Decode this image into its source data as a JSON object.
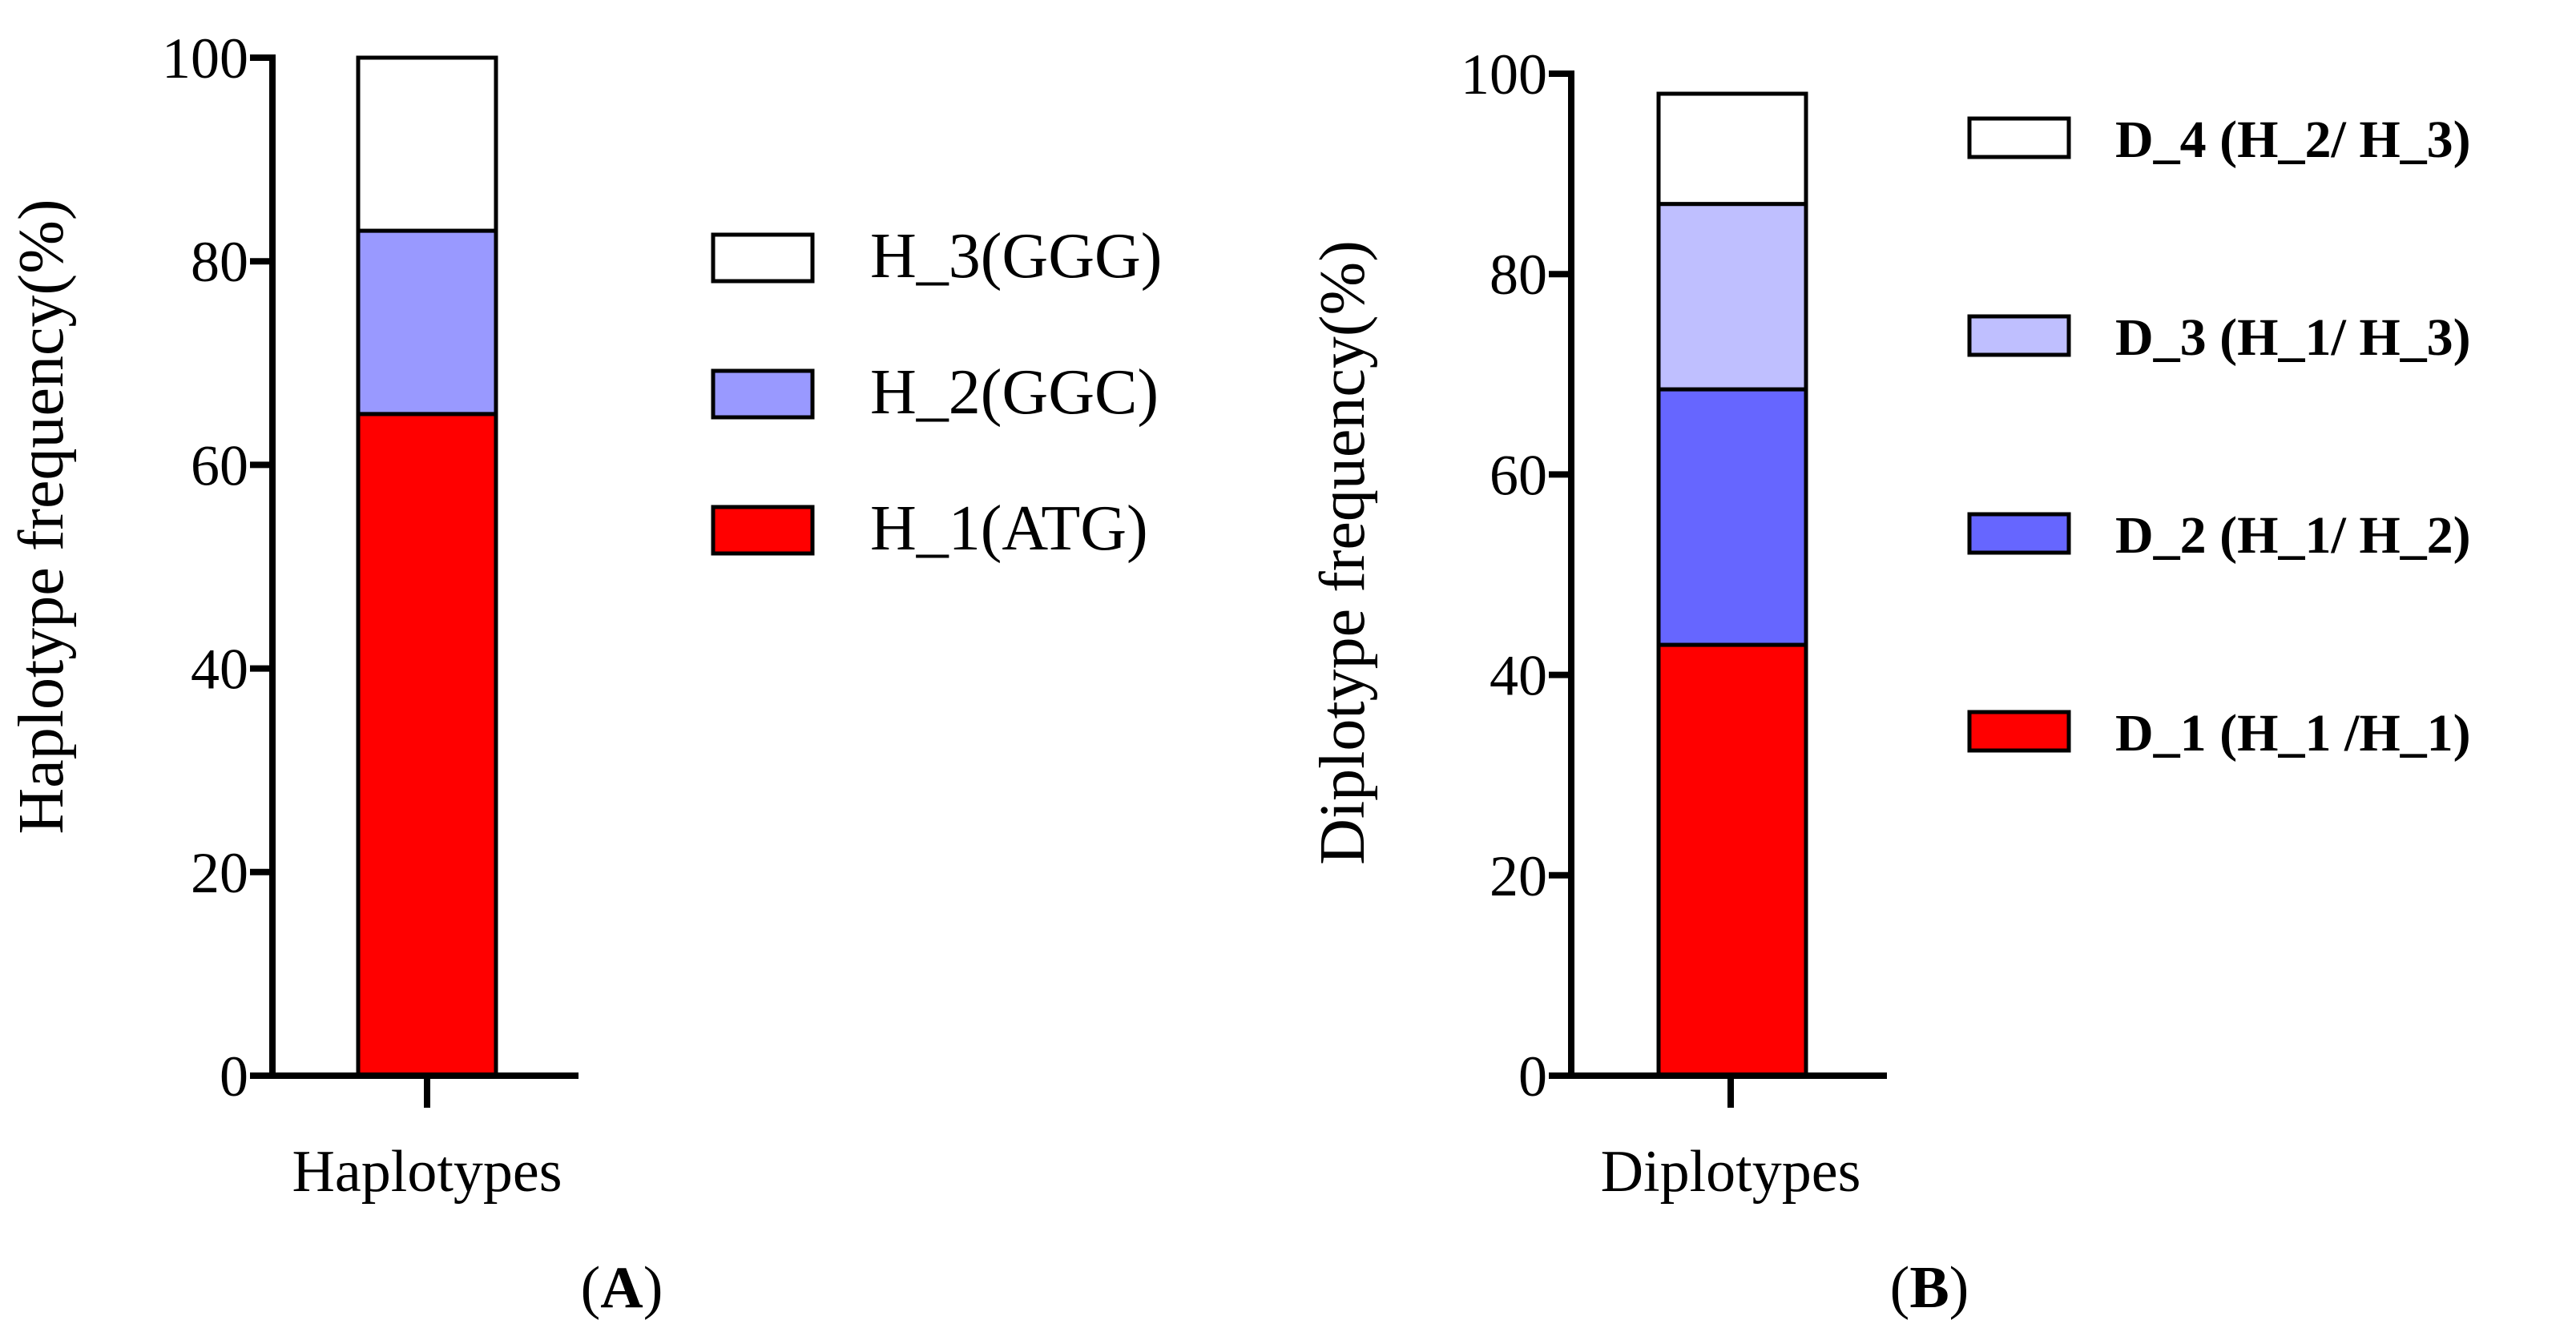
{
  "chart_data": [
    {
      "panel": "A",
      "type": "bar",
      "stacked": true,
      "categories": [
        "Haplotypes"
      ],
      "series": [
        {
          "name": "H_1(ATG)",
          "values": [
            65
          ],
          "color": "#FF0000"
        },
        {
          "name": "H_2(GGC)",
          "values": [
            18
          ],
          "color": "#9999FF"
        },
        {
          "name": "H_3(GGG)",
          "values": [
            17
          ],
          "color": "#FFFFFF"
        }
      ],
      "legend_order": [
        "H_3(GGG)",
        "H_2(GGC)",
        "H_1(ATG)"
      ],
      "ylabel": "Haplotype frequency(%)",
      "xlabel": "",
      "ylim": [
        0,
        100
      ],
      "yticks": [
        "0",
        "20",
        "40",
        "60",
        "80",
        "100"
      ],
      "legend_position": "right",
      "grid": false
    },
    {
      "panel": "B",
      "type": "bar",
      "stacked": true,
      "categories": [
        "Diplotypes"
      ],
      "series": [
        {
          "name": "D_1 (H_1 /H_1)",
          "values": [
            43
          ],
          "color": "#FF0000"
        },
        {
          "name": "D_2 (H_1/ H_2)",
          "values": [
            25.5
          ],
          "color": "#6666FF"
        },
        {
          "name": "D_3 (H_1/ H_3)",
          "values": [
            18.5
          ],
          "color": "#BFBFFF"
        },
        {
          "name": "D_4 (H_2/ H_3)",
          "values": [
            11
          ],
          "color": "#FFFFFF"
        }
      ],
      "legend_order": [
        "D_4 (H_2/ H_3)",
        "D_3 (H_1/ H_3)",
        "D_2 (H_1/ H_2)",
        "D_1 (H_1 /H_1)"
      ],
      "ylabel": "Diplotype frequency(%)",
      "xlabel": "",
      "ylim": [
        0,
        100
      ],
      "yticks": [
        "0",
        "20",
        "40",
        "60",
        "80",
        "100"
      ],
      "legend_position": "right",
      "grid": false
    }
  ],
  "panel_labels": {
    "a": {
      "open": "(",
      "letter": "A",
      "close": ")"
    },
    "b": {
      "open": "(",
      "letter": "B",
      "close": ")"
    }
  }
}
